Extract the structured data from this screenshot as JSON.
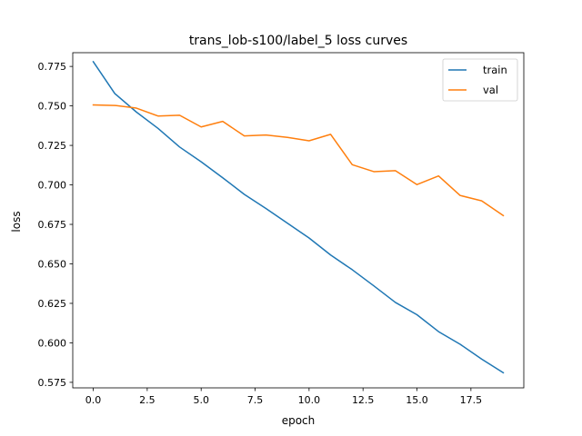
{
  "chart_data": {
    "type": "line",
    "title": "trans_lob-s100/label_5 loss curves",
    "xlabel": "epoch",
    "ylabel": "loss",
    "x": [
      0,
      1,
      2,
      3,
      4,
      5,
      6,
      7,
      8,
      9,
      10,
      11,
      12,
      13,
      14,
      15,
      16,
      17,
      18,
      19
    ],
    "xlim": [
      -0.95,
      19.95
    ],
    "ylim": [
      0.5715,
      0.7837
    ],
    "xticks": [
      0.0,
      2.5,
      5.0,
      7.5,
      10.0,
      12.5,
      15.0,
      17.5
    ],
    "xtick_labels": [
      "0.0",
      "2.5",
      "5.0",
      "7.5",
      "10.0",
      "12.5",
      "15.0",
      "17.5"
    ],
    "yticks": [
      0.575,
      0.6,
      0.625,
      0.65,
      0.675,
      0.7,
      0.725,
      0.75,
      0.775
    ],
    "ytick_labels": [
      "0.575",
      "0.600",
      "0.625",
      "0.650",
      "0.675",
      "0.700",
      "0.725",
      "0.750",
      "0.775"
    ],
    "grid": false,
    "legend_position": "top-right",
    "series": [
      {
        "name": "train",
        "color": "#1f77b4",
        "values": [
          0.778,
          0.7578,
          0.7461,
          0.7358,
          0.724,
          0.7146,
          0.7045,
          0.694,
          0.6851,
          0.6757,
          0.6664,
          0.6556,
          0.6463,
          0.6361,
          0.6256,
          0.6178,
          0.6071,
          0.5991,
          0.5897,
          0.5811
        ]
      },
      {
        "name": "val",
        "color": "#ff7f0e",
        "values": [
          0.7506,
          0.7503,
          0.7486,
          0.7436,
          0.7441,
          0.7367,
          0.7402,
          0.731,
          0.7316,
          0.7301,
          0.7279,
          0.732,
          0.7128,
          0.7084,
          0.709,
          0.7002,
          0.7057,
          0.6933,
          0.6899,
          0.6806
        ]
      }
    ]
  }
}
